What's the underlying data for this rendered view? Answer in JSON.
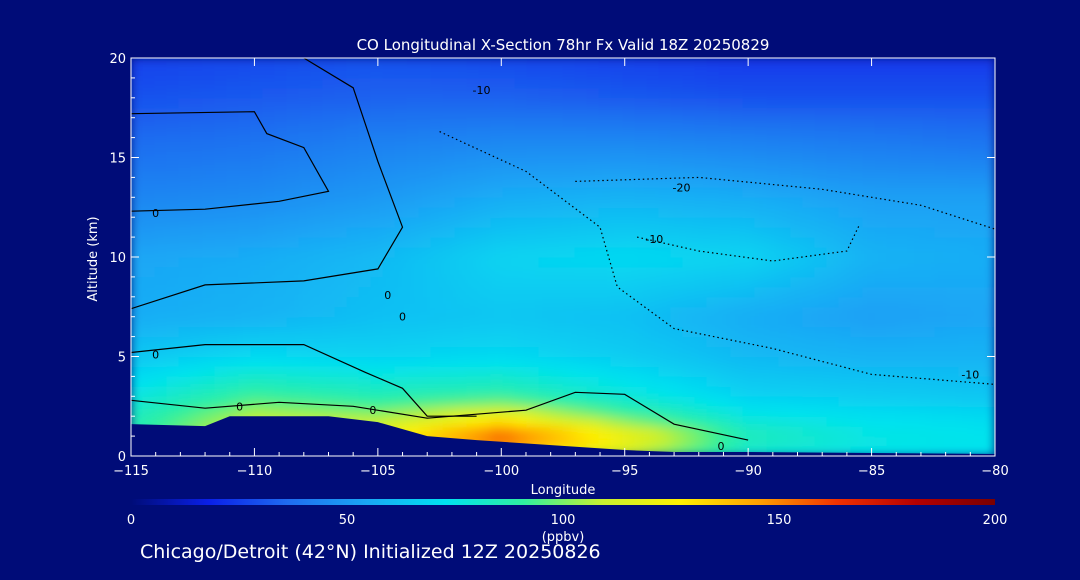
{
  "chart_data": {
    "type": "heatmap",
    "title": "CO Longitudinal X-Section 78hr  Fx Valid 18Z 20250829",
    "xlabel": "Longitude",
    "ylabel": "Altitude (km)",
    "xlim": [
      -115,
      -80
    ],
    "ylim": [
      0,
      20
    ],
    "x_ticks": [
      -115,
      -110,
      -105,
      -100,
      -95,
      -90,
      -85,
      -80
    ],
    "x_tick_labels": [
      "−115",
      "−110",
      "−105",
      "−100",
      "−95",
      "−90",
      "−85",
      "−80"
    ],
    "y_ticks": [
      0,
      5,
      10,
      15,
      20
    ],
    "y_tick_labels": [
      "0",
      "5",
      "10",
      "15",
      "20"
    ],
    "colorbar": {
      "range": [
        0,
        200
      ],
      "ticks": [
        0,
        50,
        100,
        150,
        200
      ],
      "tick_labels": [
        "0",
        "50",
        "100",
        "150",
        "200"
      ],
      "unit": "(ppbv)",
      "colors": [
        "#000c78",
        "#0a20e8",
        "#1f6cf0",
        "#1aa8f5",
        "#00e2f0",
        "#30f0a0",
        "#c8f030",
        "#fff000",
        "#ffa000",
        "#f03000",
        "#b40000",
        "#7a0000"
      ]
    },
    "field_description_note": "",
    "co_field": {
      "x": [
        -115,
        -110,
        -105,
        -100,
        -95,
        -90,
        -85,
        -80
      ],
      "y": [
        0,
        1,
        2,
        3,
        5,
        7,
        10,
        13,
        16,
        18,
        20
      ],
      "z": [
        [
          82,
          110,
          118,
          135,
          108,
          78,
          74,
          72
        ],
        [
          86,
          118,
          122,
          160,
          125,
          86,
          76,
          74
        ],
        [
          84,
          108,
          104,
          122,
          95,
          76,
          72,
          70
        ],
        [
          76,
          92,
          86,
          90,
          78,
          68,
          66,
          64
        ],
        [
          64,
          70,
          68,
          70,
          66,
          60,
          58,
          58
        ],
        [
          56,
          58,
          62,
          64,
          62,
          56,
          52,
          54
        ],
        [
          54,
          56,
          60,
          68,
          70,
          68,
          58,
          56
        ],
        [
          44,
          46,
          50,
          56,
          58,
          56,
          52,
          52
        ],
        [
          36,
          38,
          42,
          44,
          44,
          42,
          40,
          38
        ],
        [
          30,
          32,
          34,
          34,
          32,
          30,
          30,
          30
        ],
        [
          26,
          28,
          30,
          28,
          26,
          24,
          24,
          24
        ]
      ]
    },
    "terrain": {
      "x": [
        -115,
        -112,
        -111,
        -107,
        -105,
        -103,
        -101,
        -95,
        -93,
        -90,
        -85,
        -80
      ],
      "y": [
        1.6,
        1.5,
        2.0,
        2.0,
        1.7,
        1.0,
        0.8,
        0.3,
        0.2,
        0.2,
        0.15,
        0.1
      ]
    },
    "contour_labels": [
      "-10",
      "-20",
      "-10",
      "-10",
      "0",
      "0",
      "0",
      "0",
      "0",
      "0",
      "0"
    ],
    "contour_label_positions": [
      {
        "text_index": 0,
        "lon": -100.8,
        "alt": 18.4
      },
      {
        "text_index": 1,
        "lon": -92.7,
        "alt": 13.5
      },
      {
        "text_index": 2,
        "lon": -93.8,
        "alt": 10.9
      },
      {
        "text_index": 3,
        "lon": -81.0,
        "alt": 4.1
      },
      {
        "text_index": 4,
        "lon": -114.0,
        "alt": 12.2
      },
      {
        "text_index": 5,
        "lon": -114.0,
        "alt": 5.1
      },
      {
        "text_index": 6,
        "lon": -110.6,
        "alt": 2.5
      },
      {
        "text_index": 7,
        "lon": -105.2,
        "alt": 2.3
      },
      {
        "text_index": 8,
        "lon": -104.6,
        "alt": 8.1
      },
      {
        "text_index": 9,
        "lon": -104.0,
        "alt": 7.0
      },
      {
        "text_index": 10,
        "lon": -91.1,
        "alt": 0.5
      }
    ],
    "contours": [
      {
        "style": "solid",
        "points": [
          [
            -115,
            2.8
          ],
          [
            -112,
            2.4
          ],
          [
            -109,
            2.7
          ],
          [
            -106,
            2.5
          ],
          [
            -103,
            1.9
          ],
          [
            -101,
            2.1
          ],
          [
            -99,
            2.3
          ],
          [
            -97,
            3.2
          ],
          [
            -95,
            3.1
          ],
          [
            -93,
            1.6
          ],
          [
            -90,
            0.8
          ]
        ]
      },
      {
        "style": "solid",
        "points": [
          [
            -115,
            7.4
          ],
          [
            -112,
            8.6
          ],
          [
            -108,
            8.8
          ],
          [
            -105,
            9.4
          ],
          [
            -104,
            11.5
          ],
          [
            -105,
            14.8
          ],
          [
            -106,
            18.5
          ],
          [
            -108,
            20
          ]
        ]
      },
      {
        "style": "solid",
        "points": [
          [
            -115,
            5.2
          ],
          [
            -112,
            5.6
          ],
          [
            -108,
            5.6
          ],
          [
            -105.5,
            4.2
          ],
          [
            -104,
            3.4
          ],
          [
            -103,
            2.0
          ],
          [
            -101,
            2.0
          ]
        ]
      },
      {
        "style": "solid",
        "points": [
          [
            -115,
            17.2
          ],
          [
            -110,
            17.3
          ],
          [
            -109.5,
            16.2
          ],
          [
            -108,
            15.5
          ],
          [
            -107,
            13.3
          ],
          [
            -109,
            12.8
          ],
          [
            -112,
            12.4
          ],
          [
            -115,
            12.3
          ]
        ]
      },
      {
        "style": "dotted",
        "points": [
          [
            -102.5,
            16.3
          ],
          [
            -99,
            14.3
          ],
          [
            -96,
            11.5
          ],
          [
            -95.3,
            8.5
          ],
          [
            -93,
            6.4
          ],
          [
            -89,
            5.4
          ],
          [
            -85,
            4.1
          ],
          [
            -80,
            3.6
          ]
        ]
      },
      {
        "style": "dotted",
        "points": [
          [
            -97,
            13.8
          ],
          [
            -92,
            14.0
          ],
          [
            -87,
            13.4
          ],
          [
            -83,
            12.6
          ],
          [
            -80,
            11.4
          ]
        ]
      },
      {
        "style": "dotted",
        "points": [
          [
            -94.5,
            11.0
          ],
          [
            -92,
            10.3
          ],
          [
            -89,
            9.8
          ],
          [
            -86,
            10.3
          ],
          [
            -85.5,
            11.6
          ]
        ]
      }
    ]
  },
  "footer": {
    "text": "Chicago/Detroit (42°N) Initialized 12Z 20250826"
  }
}
